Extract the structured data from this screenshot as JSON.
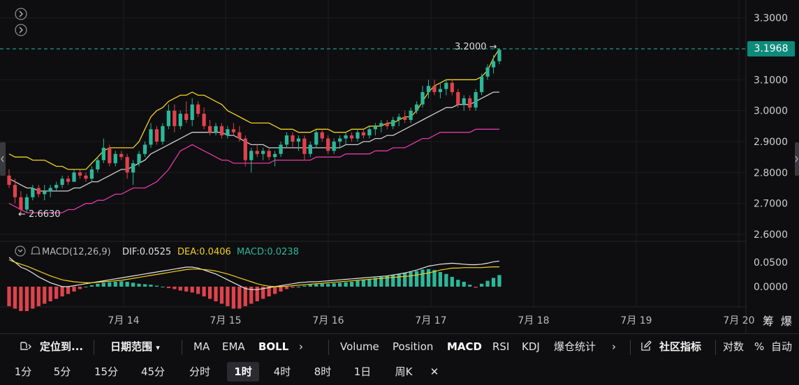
{
  "colors": {
    "up": "#2bb89a",
    "down": "#e0424c",
    "boll_upper": "#f2d21e",
    "boll_mid": "#cfcfcf",
    "boll_lower": "#e23aa6",
    "dif": "#e8e8e8",
    "dea": "#f2d21e",
    "grid": "#1d1d20",
    "dash": "#18c29a"
  },
  "icons": [
    "chevron-right-icon",
    "chevron-right-icon",
    "chevron-down-icon",
    "bell-icon",
    "locate-icon",
    "edit-icon",
    "close-icon"
  ],
  "main": {
    "last_price": "3.1968",
    "high_label": "3.2000",
    "low_label": "2.6630",
    "high_arrow": "→",
    "low_arrow": "←",
    "price_axis_ticks": [
      "3.3000",
      "3.1000",
      "3.0000",
      "2.9000",
      "2.8000",
      "2.7000",
      "2.6000"
    ],
    "price_axis_values": [
      3.3,
      3.1,
      3.0,
      2.9,
      2.8,
      2.7,
      2.6
    ]
  },
  "macd": {
    "title": "MACD(12,26,9)",
    "dif_label": "DIF:0.0525",
    "dea_label": "DEA:0.0406",
    "macd_label": "MACD:0.0238",
    "axis_ticks": [
      "0.0500",
      "0.0000"
    ]
  },
  "x_axis": {
    "ticks": [
      "7月 14",
      "7月 15",
      "7月 16",
      "7月 17",
      "7月 18",
      "7月 19",
      "7月 20"
    ]
  },
  "right_labels": [
    "筹",
    "爆"
  ],
  "toolbar1": {
    "locate": "定位到...",
    "date_range": "日期范围",
    "ma": "MA",
    "ema": "EMA",
    "boll": "BOLL",
    "more1": "›",
    "volume": "Volume",
    "position": "Position",
    "macd": "MACD",
    "rsi": "RSI",
    "kdj": "KDJ",
    "liq": "爆仓统计",
    "more2": "›",
    "community": "社区指标",
    "log": "对数",
    "pct": "%",
    "auto": "自动"
  },
  "toolbar2": {
    "intervals": [
      "1分",
      "5分",
      "15分",
      "45分",
      "分时",
      "1时",
      "4时",
      "8时",
      "1日",
      "周K"
    ],
    "active": "1时",
    "close": "✕"
  },
  "chart_data": {
    "type": "candlestick",
    "x_unit": "1 hour",
    "price_range": [
      2.56,
      3.34
    ],
    "candles": [
      {
        "o": 2.79,
        "h": 2.81,
        "l": 2.75,
        "c": 2.76
      },
      {
        "o": 2.76,
        "h": 2.78,
        "l": 2.7,
        "c": 2.72
      },
      {
        "o": 2.72,
        "h": 2.74,
        "l": 2.663,
        "c": 2.68
      },
      {
        "o": 2.68,
        "h": 2.73,
        "l": 2.67,
        "c": 2.72
      },
      {
        "o": 2.72,
        "h": 2.76,
        "l": 2.71,
        "c": 2.75
      },
      {
        "o": 2.75,
        "h": 2.76,
        "l": 2.72,
        "c": 2.73
      },
      {
        "o": 2.73,
        "h": 2.76,
        "l": 2.71,
        "c": 2.74
      },
      {
        "o": 2.74,
        "h": 2.76,
        "l": 2.72,
        "c": 2.75
      },
      {
        "o": 2.75,
        "h": 2.77,
        "l": 2.74,
        "c": 2.76
      },
      {
        "o": 2.76,
        "h": 2.79,
        "l": 2.75,
        "c": 2.78
      },
      {
        "o": 2.78,
        "h": 2.79,
        "l": 2.76,
        "c": 2.77
      },
      {
        "o": 2.77,
        "h": 2.81,
        "l": 2.77,
        "c": 2.8
      },
      {
        "o": 2.8,
        "h": 2.81,
        "l": 2.78,
        "c": 2.79
      },
      {
        "o": 2.79,
        "h": 2.8,
        "l": 2.77,
        "c": 2.78
      },
      {
        "o": 2.78,
        "h": 2.82,
        "l": 2.77,
        "c": 2.81
      },
      {
        "o": 2.81,
        "h": 2.85,
        "l": 2.8,
        "c": 2.84
      },
      {
        "o": 2.84,
        "h": 2.91,
        "l": 2.83,
        "c": 2.88
      },
      {
        "o": 2.88,
        "h": 2.89,
        "l": 2.82,
        "c": 2.83
      },
      {
        "o": 2.83,
        "h": 2.87,
        "l": 2.82,
        "c": 2.86
      },
      {
        "o": 2.86,
        "h": 2.87,
        "l": 2.84,
        "c": 2.85
      },
      {
        "o": 2.85,
        "h": 2.86,
        "l": 2.78,
        "c": 2.8
      },
      {
        "o": 2.8,
        "h": 2.84,
        "l": 2.76,
        "c": 2.83
      },
      {
        "o": 2.83,
        "h": 2.87,
        "l": 2.82,
        "c": 2.86
      },
      {
        "o": 2.86,
        "h": 2.9,
        "l": 2.85,
        "c": 2.89
      },
      {
        "o": 2.89,
        "h": 2.96,
        "l": 2.88,
        "c": 2.94
      },
      {
        "o": 2.94,
        "h": 2.95,
        "l": 2.89,
        "c": 2.9
      },
      {
        "o": 2.9,
        "h": 2.96,
        "l": 2.89,
        "c": 2.95
      },
      {
        "o": 2.95,
        "h": 3.02,
        "l": 2.94,
        "c": 3.0
      },
      {
        "o": 3.0,
        "h": 3.02,
        "l": 2.93,
        "c": 2.95
      },
      {
        "o": 2.95,
        "h": 3.0,
        "l": 2.94,
        "c": 2.99
      },
      {
        "o": 2.99,
        "h": 3.03,
        "l": 2.96,
        "c": 2.97
      },
      {
        "o": 2.97,
        "h": 3.04,
        "l": 2.95,
        "c": 3.02
      },
      {
        "o": 3.02,
        "h": 3.03,
        "l": 2.98,
        "c": 2.99
      },
      {
        "o": 2.99,
        "h": 3.01,
        "l": 2.94,
        "c": 2.95
      },
      {
        "o": 2.95,
        "h": 2.97,
        "l": 2.92,
        "c": 2.93
      },
      {
        "o": 2.93,
        "h": 2.96,
        "l": 2.92,
        "c": 2.95
      },
      {
        "o": 2.95,
        "h": 2.96,
        "l": 2.91,
        "c": 2.92
      },
      {
        "o": 2.92,
        "h": 2.95,
        "l": 2.91,
        "c": 2.94
      },
      {
        "o": 2.94,
        "h": 2.96,
        "l": 2.92,
        "c": 2.93
      },
      {
        "o": 2.93,
        "h": 2.95,
        "l": 2.9,
        "c": 2.91
      },
      {
        "o": 2.91,
        "h": 2.92,
        "l": 2.82,
        "c": 2.84
      },
      {
        "o": 2.84,
        "h": 2.88,
        "l": 2.8,
        "c": 2.87
      },
      {
        "o": 2.87,
        "h": 2.89,
        "l": 2.85,
        "c": 2.86
      },
      {
        "o": 2.86,
        "h": 2.88,
        "l": 2.84,
        "c": 2.87
      },
      {
        "o": 2.87,
        "h": 2.88,
        "l": 2.84,
        "c": 2.85
      },
      {
        "o": 2.85,
        "h": 2.87,
        "l": 2.82,
        "c": 2.86
      },
      {
        "o": 2.86,
        "h": 2.9,
        "l": 2.85,
        "c": 2.89
      },
      {
        "o": 2.89,
        "h": 2.93,
        "l": 2.88,
        "c": 2.92
      },
      {
        "o": 2.92,
        "h": 2.93,
        "l": 2.88,
        "c": 2.9
      },
      {
        "o": 2.9,
        "h": 2.92,
        "l": 2.87,
        "c": 2.91
      },
      {
        "o": 2.91,
        "h": 2.92,
        "l": 2.84,
        "c": 2.86
      },
      {
        "o": 2.86,
        "h": 2.9,
        "l": 2.85,
        "c": 2.89
      },
      {
        "o": 2.89,
        "h": 2.94,
        "l": 2.88,
        "c": 2.93
      },
      {
        "o": 2.93,
        "h": 2.94,
        "l": 2.9,
        "c": 2.91
      },
      {
        "o": 2.91,
        "h": 2.92,
        "l": 2.86,
        "c": 2.87
      },
      {
        "o": 2.87,
        "h": 2.91,
        "l": 2.86,
        "c": 2.9
      },
      {
        "o": 2.9,
        "h": 2.92,
        "l": 2.88,
        "c": 2.91
      },
      {
        "o": 2.91,
        "h": 2.93,
        "l": 2.89,
        "c": 2.92
      },
      {
        "o": 2.92,
        "h": 2.93,
        "l": 2.9,
        "c": 2.91
      },
      {
        "o": 2.91,
        "h": 2.94,
        "l": 2.9,
        "c": 2.93
      },
      {
        "o": 2.93,
        "h": 2.94,
        "l": 2.91,
        "c": 2.92
      },
      {
        "o": 2.92,
        "h": 2.95,
        "l": 2.91,
        "c": 2.94
      },
      {
        "o": 2.94,
        "h": 2.96,
        "l": 2.92,
        "c": 2.95
      },
      {
        "o": 2.95,
        "h": 2.97,
        "l": 2.93,
        "c": 2.96
      },
      {
        "o": 2.96,
        "h": 2.97,
        "l": 2.94,
        "c": 2.95
      },
      {
        "o": 2.95,
        "h": 2.98,
        "l": 2.94,
        "c": 2.97
      },
      {
        "o": 2.97,
        "h": 2.99,
        "l": 2.95,
        "c": 2.98
      },
      {
        "o": 2.98,
        "h": 3.0,
        "l": 2.96,
        "c": 2.97
      },
      {
        "o": 2.97,
        "h": 3.01,
        "l": 2.96,
        "c": 3.0
      },
      {
        "o": 3.0,
        "h": 3.03,
        "l": 2.99,
        "c": 3.02
      },
      {
        "o": 3.02,
        "h": 3.08,
        "l": 3.01,
        "c": 3.06
      },
      {
        "o": 3.06,
        "h": 3.1,
        "l": 3.04,
        "c": 3.08
      },
      {
        "o": 3.08,
        "h": 3.1,
        "l": 3.05,
        "c": 3.06
      },
      {
        "o": 3.06,
        "h": 3.09,
        "l": 3.04,
        "c": 3.07
      },
      {
        "o": 3.07,
        "h": 3.1,
        "l": 3.05,
        "c": 3.09
      },
      {
        "o": 3.09,
        "h": 3.1,
        "l": 3.05,
        "c": 3.06
      },
      {
        "o": 3.06,
        "h": 3.07,
        "l": 3.01,
        "c": 3.02
      },
      {
        "o": 3.02,
        "h": 3.05,
        "l": 3.0,
        "c": 3.04
      },
      {
        "o": 3.04,
        "h": 3.05,
        "l": 3.0,
        "c": 3.01
      },
      {
        "o": 3.01,
        "h": 3.07,
        "l": 3.0,
        "c": 3.06
      },
      {
        "o": 3.06,
        "h": 3.12,
        "l": 3.05,
        "c": 3.11
      },
      {
        "o": 3.11,
        "h": 3.15,
        "l": 3.1,
        "c": 3.14
      },
      {
        "o": 3.14,
        "h": 3.18,
        "l": 3.12,
        "c": 3.16
      },
      {
        "o": 3.16,
        "h": 3.2,
        "l": 3.15,
        "c": 3.1968
      }
    ],
    "boll_upper": [
      2.86,
      2.85,
      2.85,
      2.85,
      2.84,
      2.84,
      2.84,
      2.83,
      2.82,
      2.82,
      2.81,
      2.81,
      2.81,
      2.81,
      2.83,
      2.85,
      2.87,
      2.88,
      2.88,
      2.88,
      2.88,
      2.88,
      2.9,
      2.94,
      2.98,
      3.0,
      3.01,
      3.03,
      3.04,
      3.05,
      3.05,
      3.06,
      3.05,
      3.05,
      3.04,
      3.03,
      3.02,
      3.0,
      2.99,
      2.98,
      2.97,
      2.96,
      2.96,
      2.96,
      2.96,
      2.95,
      2.94,
      2.94,
      2.94,
      2.93,
      2.93,
      2.93,
      2.94,
      2.94,
      2.94,
      2.93,
      2.93,
      2.93,
      2.94,
      2.94,
      2.94,
      2.95,
      2.95,
      2.95,
      2.96,
      2.96,
      2.97,
      2.98,
      2.98,
      3.0,
      3.03,
      3.06,
      3.08,
      3.09,
      3.1,
      3.1,
      3.1,
      3.1,
      3.1,
      3.1,
      3.11,
      3.13,
      3.17,
      3.2
    ],
    "boll_mid": [
      2.78,
      2.77,
      2.76,
      2.75,
      2.75,
      2.74,
      2.74,
      2.74,
      2.74,
      2.74,
      2.74,
      2.75,
      2.75,
      2.76,
      2.77,
      2.77,
      2.78,
      2.79,
      2.8,
      2.81,
      2.81,
      2.82,
      2.83,
      2.84,
      2.86,
      2.87,
      2.88,
      2.89,
      2.9,
      2.91,
      2.92,
      2.93,
      2.93,
      2.93,
      2.93,
      2.93,
      2.93,
      2.92,
      2.92,
      2.91,
      2.9,
      2.89,
      2.89,
      2.89,
      2.88,
      2.88,
      2.88,
      2.88,
      2.88,
      2.88,
      2.88,
      2.88,
      2.88,
      2.88,
      2.88,
      2.88,
      2.88,
      2.89,
      2.89,
      2.89,
      2.9,
      2.9,
      2.91,
      2.91,
      2.92,
      2.92,
      2.93,
      2.94,
      2.95,
      2.96,
      2.97,
      2.98,
      2.99,
      3.0,
      3.01,
      3.01,
      3.02,
      3.02,
      3.02,
      3.03,
      3.04,
      3.05,
      3.06,
      3.06
    ],
    "boll_lower": [
      2.7,
      2.69,
      2.68,
      2.67,
      2.67,
      2.67,
      2.67,
      2.67,
      2.67,
      2.67,
      2.68,
      2.68,
      2.69,
      2.7,
      2.7,
      2.71,
      2.71,
      2.72,
      2.73,
      2.73,
      2.74,
      2.75,
      2.75,
      2.75,
      2.76,
      2.77,
      2.79,
      2.81,
      2.84,
      2.87,
      2.88,
      2.89,
      2.88,
      2.87,
      2.86,
      2.85,
      2.84,
      2.84,
      2.83,
      2.83,
      2.83,
      2.83,
      2.83,
      2.83,
      2.83,
      2.84,
      2.84,
      2.84,
      2.84,
      2.84,
      2.84,
      2.84,
      2.85,
      2.85,
      2.85,
      2.85,
      2.85,
      2.86,
      2.86,
      2.86,
      2.86,
      2.86,
      2.87,
      2.87,
      2.87,
      2.88,
      2.88,
      2.88,
      2.89,
      2.9,
      2.91,
      2.91,
      2.92,
      2.93,
      2.93,
      2.93,
      2.93,
      2.93,
      2.93,
      2.94,
      2.94,
      2.94,
      2.94,
      2.94
    ],
    "macd_hist": [
      -0.04,
      -0.045,
      -0.05,
      -0.05,
      -0.045,
      -0.04,
      -0.035,
      -0.03,
      -0.025,
      -0.02,
      -0.015,
      -0.01,
      -0.005,
      0.0,
      0.003,
      0.006,
      0.008,
      0.009,
      0.01,
      0.011,
      0.01,
      0.008,
      0.006,
      0.005,
      0.004,
      0.002,
      0.0,
      -0.003,
      -0.005,
      -0.008,
      -0.01,
      -0.012,
      -0.015,
      -0.02,
      -0.025,
      -0.03,
      -0.035,
      -0.04,
      -0.045,
      -0.045,
      -0.04,
      -0.035,
      -0.03,
      -0.025,
      -0.02,
      -0.015,
      -0.01,
      -0.005,
      -0.002,
      0.0,
      0.002,
      0.004,
      0.005,
      0.006,
      0.006,
      0.007,
      0.008,
      0.009,
      0.01,
      0.012,
      0.014,
      0.016,
      0.018,
      0.02,
      0.022,
      0.024,
      0.026,
      0.028,
      0.03,
      0.032,
      0.035,
      0.036,
      0.034,
      0.03,
      0.026,
      0.02,
      0.014,
      0.01,
      0.004,
      -0.002,
      0.006,
      0.012,
      0.018,
      0.0238
    ],
    "dif": [
      0.06,
      0.05,
      0.04,
      0.035,
      0.028,
      0.02,
      0.014,
      0.008,
      0.004,
      0.0,
      0.0,
      0.002,
      0.004,
      0.006,
      0.008,
      0.01,
      0.012,
      0.014,
      0.016,
      0.018,
      0.02,
      0.022,
      0.024,
      0.026,
      0.028,
      0.03,
      0.032,
      0.034,
      0.036,
      0.038,
      0.04,
      0.04,
      0.038,
      0.034,
      0.03,
      0.026,
      0.02,
      0.014,
      0.008,
      0.002,
      -0.004,
      -0.006,
      -0.006,
      -0.004,
      -0.002,
      0.0,
      0.002,
      0.004,
      0.006,
      0.008,
      0.009,
      0.01,
      0.01,
      0.011,
      0.012,
      0.013,
      0.014,
      0.015,
      0.016,
      0.017,
      0.018,
      0.019,
      0.02,
      0.021,
      0.022,
      0.024,
      0.026,
      0.028,
      0.031,
      0.034,
      0.038,
      0.042,
      0.044,
      0.046,
      0.047,
      0.048,
      0.047,
      0.046,
      0.045,
      0.045,
      0.046,
      0.048,
      0.051,
      0.0525
    ],
    "dea": [
      0.055,
      0.05,
      0.046,
      0.042,
      0.037,
      0.032,
      0.027,
      0.022,
      0.018,
      0.014,
      0.012,
      0.01,
      0.009,
      0.008,
      0.008,
      0.009,
      0.01,
      0.011,
      0.012,
      0.013,
      0.015,
      0.017,
      0.019,
      0.021,
      0.023,
      0.025,
      0.027,
      0.029,
      0.031,
      0.033,
      0.035,
      0.036,
      0.036,
      0.035,
      0.034,
      0.032,
      0.029,
      0.026,
      0.022,
      0.018,
      0.014,
      0.01,
      0.006,
      0.003,
      0.001,
      0.0,
      0.0,
      0.001,
      0.002,
      0.003,
      0.004,
      0.005,
      0.006,
      0.007,
      0.008,
      0.009,
      0.01,
      0.011,
      0.012,
      0.013,
      0.014,
      0.015,
      0.016,
      0.017,
      0.018,
      0.019,
      0.02,
      0.021,
      0.022,
      0.024,
      0.026,
      0.028,
      0.031,
      0.034,
      0.036,
      0.038,
      0.038,
      0.039,
      0.039,
      0.039,
      0.039,
      0.04,
      0.0405,
      0.0406
    ]
  }
}
